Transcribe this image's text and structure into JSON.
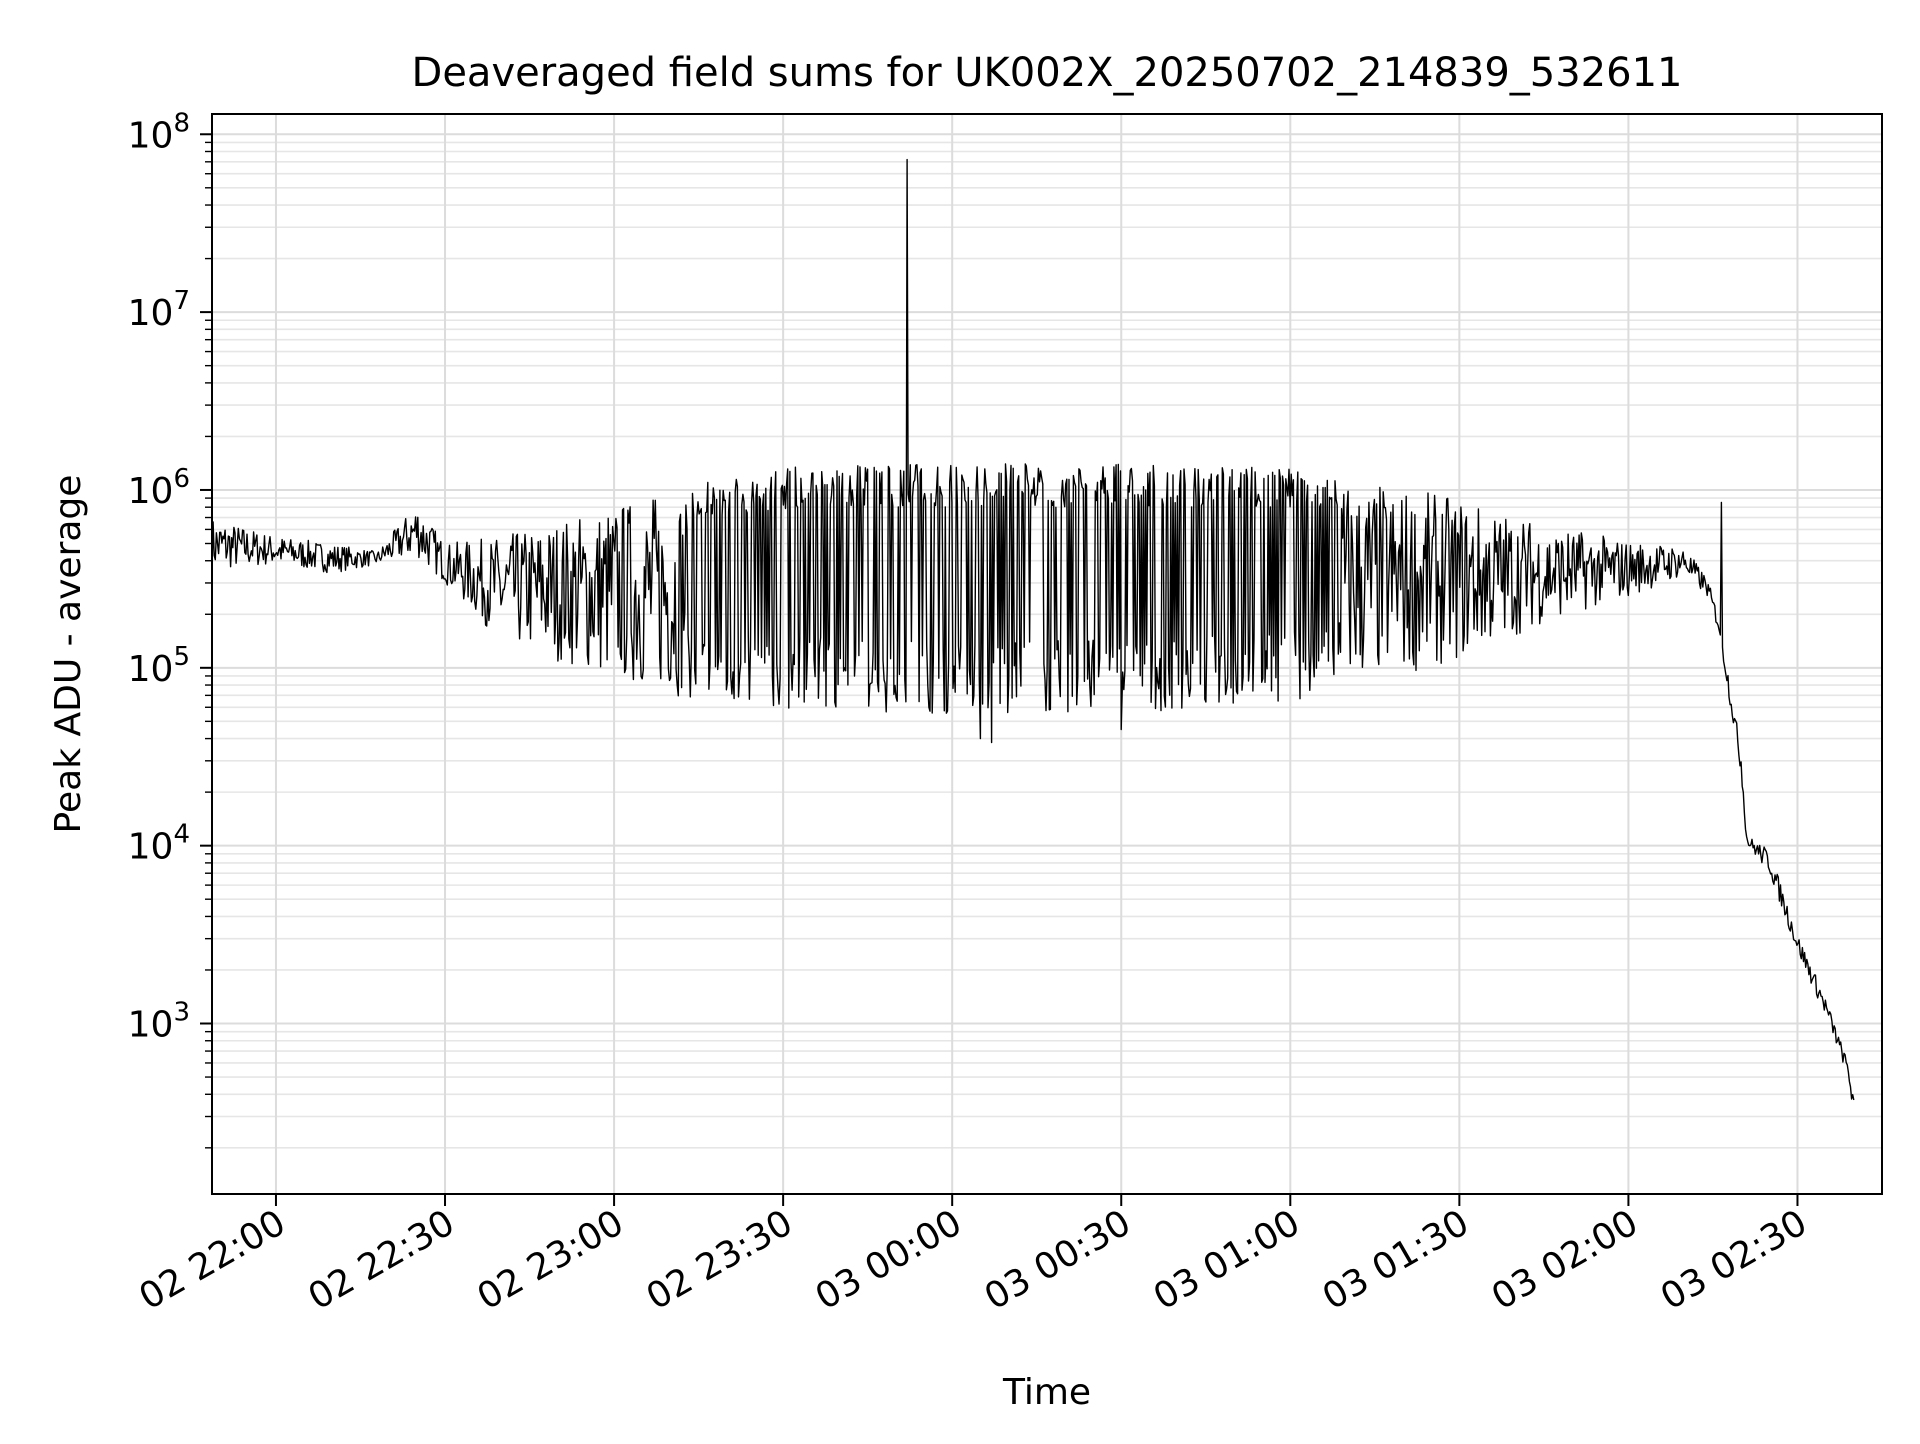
{
  "chart_data": {
    "type": "line",
    "title": "Deaveraged field sums for UK002X_20250702_214839_532611",
    "xlabel": "Time",
    "ylabel": "Peak ADU - average",
    "yscale": "log",
    "grid": true,
    "grid_minor": true,
    "legend": "none",
    "xlim": [
      "2025-07-02 21:48:39",
      "2025-07-03 02:45:00"
    ],
    "ylim": [
      110,
      130000000
    ],
    "x_ticks": [
      {
        "value": "2025-07-02 22:00",
        "label": "02 22:00"
      },
      {
        "value": "2025-07-02 22:30",
        "label": "02 22:30"
      },
      {
        "value": "2025-07-02 23:00",
        "label": "02 23:00"
      },
      {
        "value": "2025-07-02 23:30",
        "label": "02 23:30"
      },
      {
        "value": "2025-07-03 00:00",
        "label": "03 00:00"
      },
      {
        "value": "2025-07-03 00:30",
        "label": "03 00:30"
      },
      {
        "value": "2025-07-03 01:00",
        "label": "03 01:00"
      },
      {
        "value": "2025-07-03 01:30",
        "label": "03 01:30"
      },
      {
        "value": "2025-07-03 02:00",
        "label": "03 02:00"
      },
      {
        "value": "2025-07-03 02:30",
        "label": "03 02:30"
      }
    ],
    "y_ticks": [
      {
        "value": 1000,
        "base": "10",
        "exp": "3"
      },
      {
        "value": 10000,
        "base": "10",
        "exp": "4"
      },
      {
        "value": 100000,
        "base": "10",
        "exp": "5"
      },
      {
        "value": 1000000,
        "base": "10",
        "exp": "6"
      },
      {
        "value": 10000000,
        "base": "10",
        "exp": "7"
      },
      {
        "value": 100000000,
        "base": "10",
        "exp": "8"
      }
    ],
    "series": [
      {
        "color": "#000000",
        "envelope": [
          {
            "x": "2025-07-02 21:48:39",
            "low": 350000,
            "high": 700000
          },
          {
            "x": "2025-07-02 22:00",
            "low": 380000,
            "high": 550000
          },
          {
            "x": "2025-07-02 22:10",
            "low": 340000,
            "high": 500000
          },
          {
            "x": "2025-07-02 22:18",
            "low": 380000,
            "high": 450000
          },
          {
            "x": "2025-07-02 22:25",
            "low": 420000,
            "high": 850000
          },
          {
            "x": "2025-07-02 22:30",
            "low": 300000,
            "high": 500000
          },
          {
            "x": "2025-07-02 22:40",
            "low": 140000,
            "high": 550000
          },
          {
            "x": "2025-07-02 23:00",
            "low": 85000,
            "high": 850000
          },
          {
            "x": "2025-07-02 23:15",
            "low": 65000,
            "high": 1100000
          },
          {
            "x": "2025-07-02 23:30",
            "low": 58000,
            "high": 1350000
          },
          {
            "x": "2025-07-03 00:00",
            "low": 55000,
            "high": 1400000
          },
          {
            "x": "2025-07-03 00:30",
            "low": 55000,
            "high": 1400000
          },
          {
            "x": "2025-07-03 01:00",
            "low": 65000,
            "high": 1350000
          },
          {
            "x": "2025-07-03 01:30",
            "low": 110000,
            "high": 900000
          },
          {
            "x": "2025-07-03 01:45",
            "low": 180000,
            "high": 650000
          },
          {
            "x": "2025-07-03 02:00",
            "low": 250000,
            "high": 520000
          },
          {
            "x": "2025-07-03 02:10",
            "low": 330000,
            "high": 480000
          },
          {
            "x": "2025-07-03 02:14",
            "low": 250000,
            "high": 320000
          },
          {
            "x": "2025-07-03 02:16",
            "low": 160000,
            "high": 200000
          },
          {
            "x": "2025-07-03 02:20",
            "low": 25000,
            "high": 35000
          },
          {
            "x": "2025-07-03 02:21",
            "low": 10000,
            "high": 11500
          },
          {
            "x": "2025-07-03 02:25",
            "low": 7000,
            "high": 9500
          },
          {
            "x": "2025-07-03 02:30",
            "low": 2500,
            "high": 3200
          },
          {
            "x": "2025-07-03 02:35",
            "low": 1100,
            "high": 1400
          },
          {
            "x": "2025-07-03 02:39",
            "low": 500,
            "high": 600
          },
          {
            "x": "2025-07-03 02:40",
            "low": 300,
            "high": 380
          }
        ],
        "spikes": [
          {
            "x": "2025-07-02 23:52",
            "y": 72000000
          },
          {
            "x": "2025-07-03 02:16:30",
            "y": 850000
          },
          {
            "x": "2025-07-03 00:05",
            "y": 40000
          },
          {
            "x": "2025-07-03 00:07",
            "y": 38000
          },
          {
            "x": "2025-07-03 00:30",
            "y": 45000
          }
        ]
      }
    ]
  }
}
